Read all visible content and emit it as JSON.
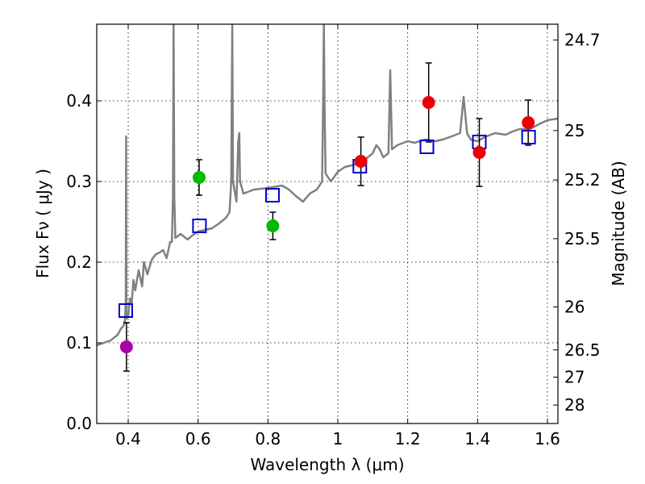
{
  "chart_data": {
    "type": "scatter",
    "xlabel": "Wavelength  λ (μm)",
    "ylabel": "Flux  Fν  ( μJy )",
    "y2label": "Magnitude (AB)",
    "xlim": [
      0.31,
      1.63
    ],
    "ylim": [
      0.0,
      0.495
    ],
    "grid": true,
    "xticks": [
      0.4,
      0.6,
      0.8,
      1.0,
      1.2,
      1.4,
      1.6
    ],
    "xtick_labels": [
      "0.4",
      "0.6",
      "0.8",
      "1",
      "1.2",
      "1.4",
      "1.6"
    ],
    "yticks": [
      0.0,
      0.1,
      0.2,
      0.3,
      0.4
    ],
    "ytick_labels": [
      "0.0",
      "0.1",
      "0.2",
      "0.3",
      "0.4"
    ],
    "mag_ticks": [
      {
        "label": "24.7",
        "flux": 0.4753
      },
      {
        "label": "25",
        "flux": 0.3631
      },
      {
        "label": "25.2",
        "flux": 0.302
      },
      {
        "label": "25.5",
        "flux": 0.2291
      },
      {
        "label": "26",
        "flux": 0.1445
      },
      {
        "label": "26.5",
        "flux": 0.0912
      },
      {
        "label": "27",
        "flux": 0.0575
      },
      {
        "label": "28",
        "flux": 0.0229
      }
    ],
    "colors": {
      "template": "#808080",
      "model_points": "#0000cc",
      "magenta": "#aa00aa",
      "green": "#00bb00",
      "red": "#ee0000",
      "errorbar": "#000000"
    },
    "observed": [
      {
        "x": 0.395,
        "y": 0.095,
        "err": 0.03,
        "color": "magenta"
      },
      {
        "x": 0.603,
        "y": 0.305,
        "err": 0.022,
        "color": "green"
      },
      {
        "x": 0.814,
        "y": 0.245,
        "err": 0.017,
        "color": "green"
      },
      {
        "x": 1.066,
        "y": 0.325,
        "err": 0.03,
        "color": "red"
      },
      {
        "x": 1.26,
        "y": 0.398,
        "err": 0.049,
        "color": "red"
      },
      {
        "x": 1.405,
        "y": 0.336,
        "err": 0.042,
        "color": "red"
      },
      {
        "x": 1.545,
        "y": 0.373,
        "err": 0.028,
        "color": "red"
      }
    ],
    "model_points": [
      {
        "x": 0.393,
        "y": 0.14
      },
      {
        "x": 0.604,
        "y": 0.245
      },
      {
        "x": 0.813,
        "y": 0.283
      },
      {
        "x": 1.063,
        "y": 0.319
      },
      {
        "x": 1.255,
        "y": 0.343
      },
      {
        "x": 1.405,
        "y": 0.349
      },
      {
        "x": 1.546,
        "y": 0.355
      }
    ],
    "template_spectrum": [
      [
        0.31,
        0.097
      ],
      [
        0.33,
        0.1
      ],
      [
        0.35,
        0.103
      ],
      [
        0.37,
        0.11
      ],
      [
        0.38,
        0.118
      ],
      [
        0.385,
        0.12
      ],
      [
        0.39,
        0.125
      ],
      [
        0.393,
        0.15
      ],
      [
        0.394,
        0.356
      ],
      [
        0.395,
        0.13
      ],
      [
        0.4,
        0.133
      ],
      [
        0.405,
        0.155
      ],
      [
        0.41,
        0.148
      ],
      [
        0.415,
        0.178
      ],
      [
        0.42,
        0.165
      ],
      [
        0.43,
        0.19
      ],
      [
        0.44,
        0.17
      ],
      [
        0.445,
        0.2
      ],
      [
        0.455,
        0.185
      ],
      [
        0.465,
        0.2
      ],
      [
        0.47,
        0.205
      ],
      [
        0.48,
        0.21
      ],
      [
        0.49,
        0.212
      ],
      [
        0.5,
        0.215
      ],
      [
        0.51,
        0.205
      ],
      [
        0.52,
        0.225
      ],
      [
        0.525,
        0.225
      ],
      [
        0.528,
        0.28
      ],
      [
        0.53,
        0.495
      ],
      [
        0.532,
        0.28
      ],
      [
        0.535,
        0.23
      ],
      [
        0.55,
        0.235
      ],
      [
        0.57,
        0.228
      ],
      [
        0.58,
        0.232
      ],
      [
        0.6,
        0.238
      ],
      [
        0.62,
        0.24
      ],
      [
        0.64,
        0.242
      ],
      [
        0.66,
        0.248
      ],
      [
        0.68,
        0.255
      ],
      [
        0.69,
        0.262
      ],
      [
        0.695,
        0.3
      ],
      [
        0.698,
        0.495
      ],
      [
        0.7,
        0.3
      ],
      [
        0.71,
        0.275
      ],
      [
        0.715,
        0.35
      ],
      [
        0.718,
        0.36
      ],
      [
        0.72,
        0.3
      ],
      [
        0.73,
        0.285
      ],
      [
        0.76,
        0.29
      ],
      [
        0.8,
        0.292
      ],
      [
        0.84,
        0.295
      ],
      [
        0.86,
        0.29
      ],
      [
        0.88,
        0.282
      ],
      [
        0.9,
        0.275
      ],
      [
        0.92,
        0.285
      ],
      [
        0.94,
        0.29
      ],
      [
        0.955,
        0.3
      ],
      [
        0.958,
        0.4
      ],
      [
        0.96,
        0.495
      ],
      [
        0.962,
        0.4
      ],
      [
        0.965,
        0.31
      ],
      [
        0.98,
        0.3
      ],
      [
        1.0,
        0.312
      ],
      [
        1.02,
        0.318
      ],
      [
        1.04,
        0.32
      ],
      [
        1.06,
        0.322
      ],
      [
        1.08,
        0.328
      ],
      [
        1.1,
        0.335
      ],
      [
        1.11,
        0.345
      ],
      [
        1.12,
        0.34
      ],
      [
        1.13,
        0.33
      ],
      [
        1.145,
        0.335
      ],
      [
        1.15,
        0.438
      ],
      [
        1.155,
        0.34
      ],
      [
        1.17,
        0.345
      ],
      [
        1.2,
        0.35
      ],
      [
        1.22,
        0.348
      ],
      [
        1.25,
        0.352
      ],
      [
        1.28,
        0.35
      ],
      [
        1.3,
        0.352
      ],
      [
        1.32,
        0.355
      ],
      [
        1.35,
        0.36
      ],
      [
        1.36,
        0.405
      ],
      [
        1.37,
        0.36
      ],
      [
        1.38,
        0.352
      ],
      [
        1.4,
        0.35
      ],
      [
        1.42,
        0.355
      ],
      [
        1.45,
        0.36
      ],
      [
        1.48,
        0.358
      ],
      [
        1.5,
        0.362
      ],
      [
        1.52,
        0.365
      ],
      [
        1.55,
        0.365
      ],
      [
        1.58,
        0.372
      ],
      [
        1.6,
        0.376
      ],
      [
        1.63,
        0.378
      ]
    ]
  }
}
